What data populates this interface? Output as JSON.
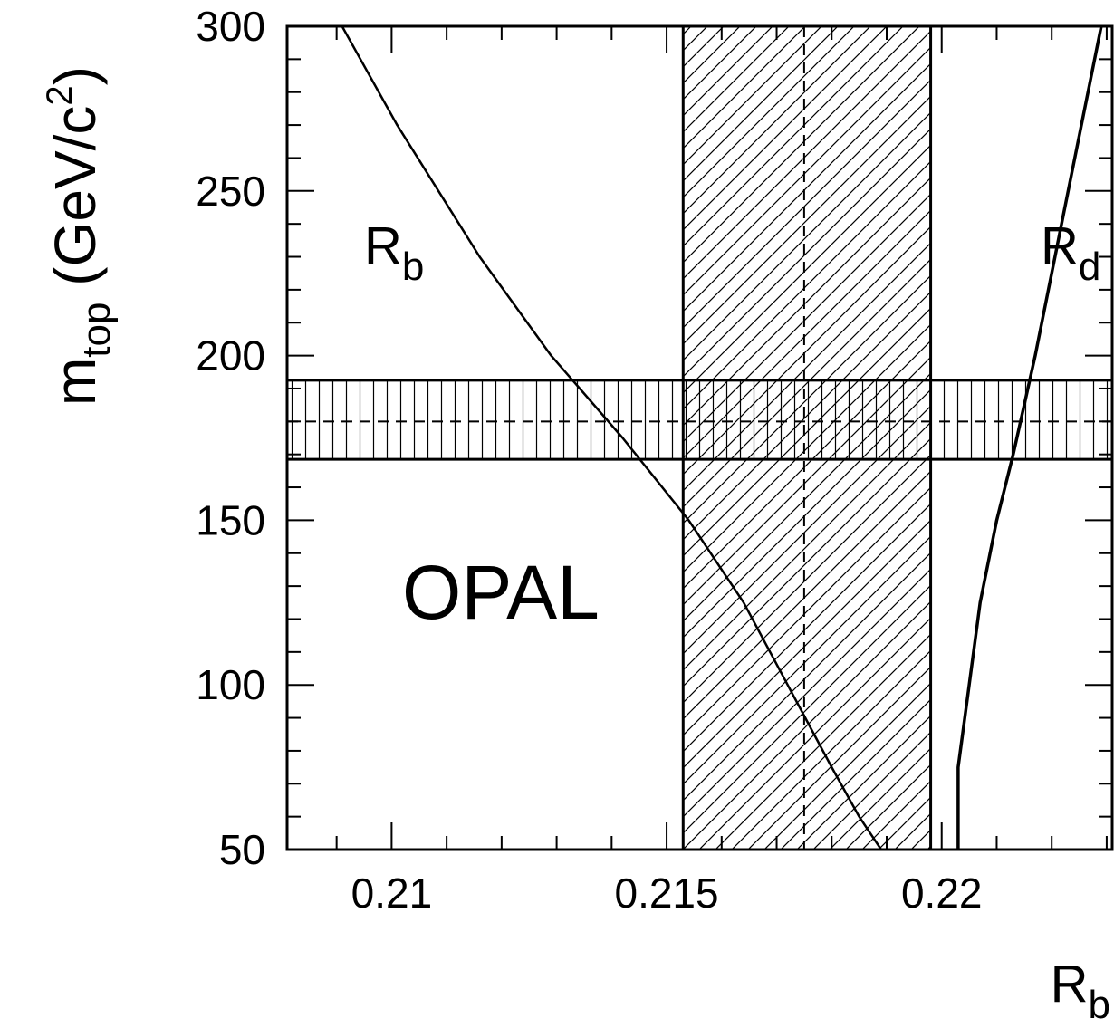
{
  "chart_data": {
    "type": "line",
    "annotation": "OPAL",
    "xlabel": {
      "main": "R",
      "sub": "b"
    },
    "ylabel": {
      "main": "m",
      "sub": "top",
      "unit_pre": " (GeV/c",
      "unit_sup": "2",
      "unit_post": ")"
    },
    "xlim": [
      0.2081,
      0.2231
    ],
    "ylim": [
      50,
      300
    ],
    "xticks": [
      {
        "value": 0.21,
        "label": "0.21"
      },
      {
        "value": 0.215,
        "label": "0.215"
      },
      {
        "value": 0.22,
        "label": "0.22"
      }
    ],
    "yticks": [
      {
        "value": 50,
        "label": "50"
      },
      {
        "value": 100,
        "label": "100"
      },
      {
        "value": 150,
        "label": "150"
      },
      {
        "value": 200,
        "label": "200"
      },
      {
        "value": 250,
        "label": "250"
      },
      {
        "value": 300,
        "label": "300"
      }
    ],
    "x_minor_step": 0.001,
    "y_minor_step": 10,
    "series": [
      {
        "name": "R_b",
        "label": {
          "main": "R",
          "sub": "b",
          "x": 0.2095,
          "y": 228
        },
        "points": [
          [
            0.2091,
            300
          ],
          [
            0.2101,
            270
          ],
          [
            0.2116,
            230
          ],
          [
            0.2129,
            200
          ],
          [
            0.2142,
            175
          ],
          [
            0.2154,
            150
          ],
          [
            0.2164,
            125
          ],
          [
            0.2172,
            100
          ],
          [
            0.218,
            75
          ],
          [
            0.2185,
            60
          ],
          [
            0.2189,
            50
          ]
        ]
      },
      {
        "name": "R_d",
        "label": {
          "main": "R",
          "sub": "d",
          "x": 0.2218,
          "y": 228
        },
        "points": [
          [
            0.2229,
            300
          ],
          [
            0.2223,
            250
          ],
          [
            0.2217,
            200
          ],
          [
            0.2213,
            170
          ],
          [
            0.221,
            150
          ],
          [
            0.2207,
            125
          ],
          [
            0.2205,
            100
          ],
          [
            0.2203,
            75
          ],
          [
            0.2203,
            50
          ]
        ]
      }
    ],
    "bands": [
      {
        "orientation": "vertical",
        "range": [
          0.2153,
          0.2198
        ],
        "center": 0.2175,
        "hatch": "diagonal"
      },
      {
        "orientation": "horizontal",
        "range": [
          168.5,
          192.5
        ],
        "center": 180,
        "hatch": "vertical"
      }
    ]
  }
}
